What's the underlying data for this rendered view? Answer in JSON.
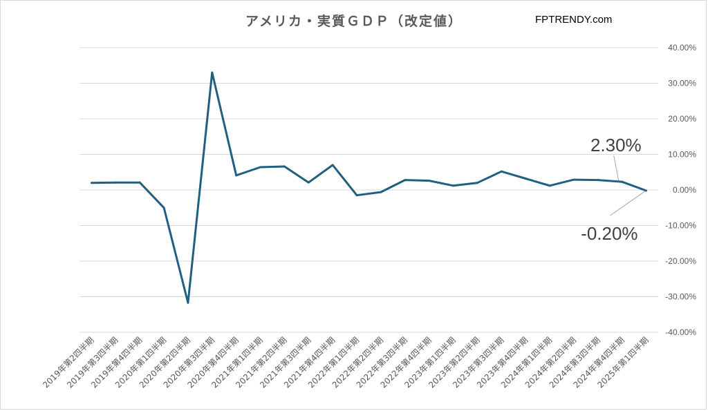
{
  "title": "アメリカ・実質ＧＤＰ（改定値）",
  "site": "FPTRENDY.com",
  "colors": {
    "line": "#1f5f7f",
    "grid": "#d9d9d9",
    "text": "#595959"
  },
  "chart_data": {
    "type": "line",
    "title": "アメリカ・実質ＧＤＰ（改定値）",
    "categories": [
      "2019年第2四半期",
      "2019年第3四半期",
      "2019年第4四半期",
      "2020年第1四半期",
      "2020年第2四半期",
      "2020年第3四半期",
      "2020年第4四半期",
      "2021年第1四半期",
      "2021年第2四半期",
      "2021年第3四半期",
      "2021年第4四半期",
      "2022年第1四半期",
      "2022年第2四半期",
      "2022年第3四半期",
      "2022年第4四半期",
      "2023年第1四半期",
      "2023年第2四半期",
      "2023年第3四半期",
      "2023年第4四半期",
      "2024年第1四半期",
      "2024年第2四半期",
      "2024年第3四半期",
      "2024年第4四半期",
      "2025年第1四半期"
    ],
    "series": [
      {
        "values": [
          2.0,
          2.1,
          2.1,
          -5.0,
          -31.7,
          33.0,
          4.1,
          6.4,
          6.6,
          2.1,
          7.0,
          -1.5,
          -0.6,
          2.8,
          2.6,
          1.2,
          2.0,
          5.2,
          3.2,
          1.2,
          2.9,
          2.8,
          2.3,
          -0.2
        ]
      }
    ],
    "ylim": [
      -40,
      40
    ],
    "yticks": [
      40,
      30,
      20,
      10,
      0,
      -10,
      -20,
      -30,
      -40
    ],
    "ytick_labels": [
      "40.00%",
      "30.00%",
      "20.00%",
      "10.00%",
      "0.00%",
      "-10.00%",
      "-20.00%",
      "-30.00%",
      "-40.00%"
    ],
    "yaxis_side": "right",
    "grid": true,
    "annotations": [
      {
        "text": "2.30%",
        "point_index": 22
      },
      {
        "text": "-0.20%",
        "point_index": 23
      }
    ]
  }
}
